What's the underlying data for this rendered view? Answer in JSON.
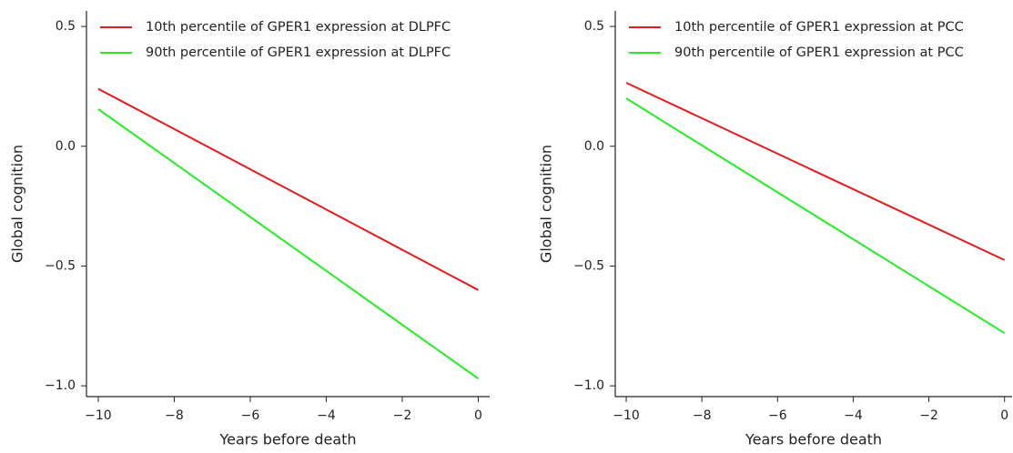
{
  "chart_data": [
    {
      "type": "line",
      "x_label": "Years before death",
      "y_label": "Global cognition",
      "x": [
        -10,
        0
      ],
      "series": [
        {
          "name": "10th percentile of GPER1 expression at DLPFC",
          "color": "#e41a1c",
          "values": [
            0.24,
            -0.6
          ]
        },
        {
          "name": "90th percentile of GPER1 expression at DLPFC",
          "color": "#22ee22",
          "values": [
            0.155,
            -0.97
          ]
        }
      ],
      "xlim": [
        -10.31,
        0.3
      ],
      "xticks": [
        {
          "value": -10,
          "label": "−10"
        },
        {
          "value": -8,
          "label": "−8"
        },
        {
          "value": -6,
          "label": "−6"
        },
        {
          "value": -4,
          "label": "−4"
        },
        {
          "value": -2,
          "label": "−2"
        },
        0
      ],
      "ylim": [
        -1.045,
        0.565
      ],
      "yticks": [
        {
          "value": -1,
          "label": "−1.0"
        },
        {
          "value": -0.5,
          "label": "−0.5"
        },
        {
          "value": 0,
          "label": "0.0"
        },
        0.5
      ],
      "legend": "upper-left"
    },
    {
      "type": "line",
      "x_label": "Years before death",
      "y_label": "Global cognition",
      "x": [
        -10,
        0
      ],
      "series": [
        {
          "name": "10th percentile of GPER1 expression at PCC",
          "color": "#e41a1c",
          "values": [
            0.265,
            -0.475
          ]
        },
        {
          "name": "90th percentile of GPER1 expression at PCC",
          "color": "#22ee22",
          "values": [
            0.2,
            -0.78
          ]
        }
      ],
      "xlim": [
        -10.29,
        0.2
      ],
      "xticks": [
        {
          "value": -10,
          "label": "−10"
        },
        {
          "value": -8,
          "label": "−8"
        },
        {
          "value": -6,
          "label": "−6"
        },
        {
          "value": -4,
          "label": "−4"
        },
        {
          "value": -2,
          "label": "−2"
        },
        0
      ],
      "ylim": [
        -1.045,
        0.565
      ],
      "yticks": [
        {
          "value": -1,
          "label": "−1.0"
        },
        {
          "value": -0.5,
          "label": "−0.5"
        },
        {
          "value": 0,
          "label": "0.0"
        },
        0.5
      ],
      "legend": "upper-left"
    }
  ]
}
